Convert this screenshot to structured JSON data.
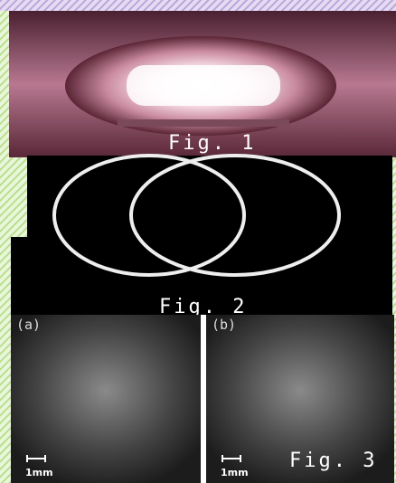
{
  "figures": [
    {
      "label": "Fig. 1"
    },
    {
      "label": "Fig. 2"
    },
    {
      "label": "Fig. 3",
      "panels": [
        {
          "label": "(a)",
          "scale": "1mm"
        },
        {
          "label": "(b)",
          "scale": "1mm"
        }
      ]
    }
  ]
}
